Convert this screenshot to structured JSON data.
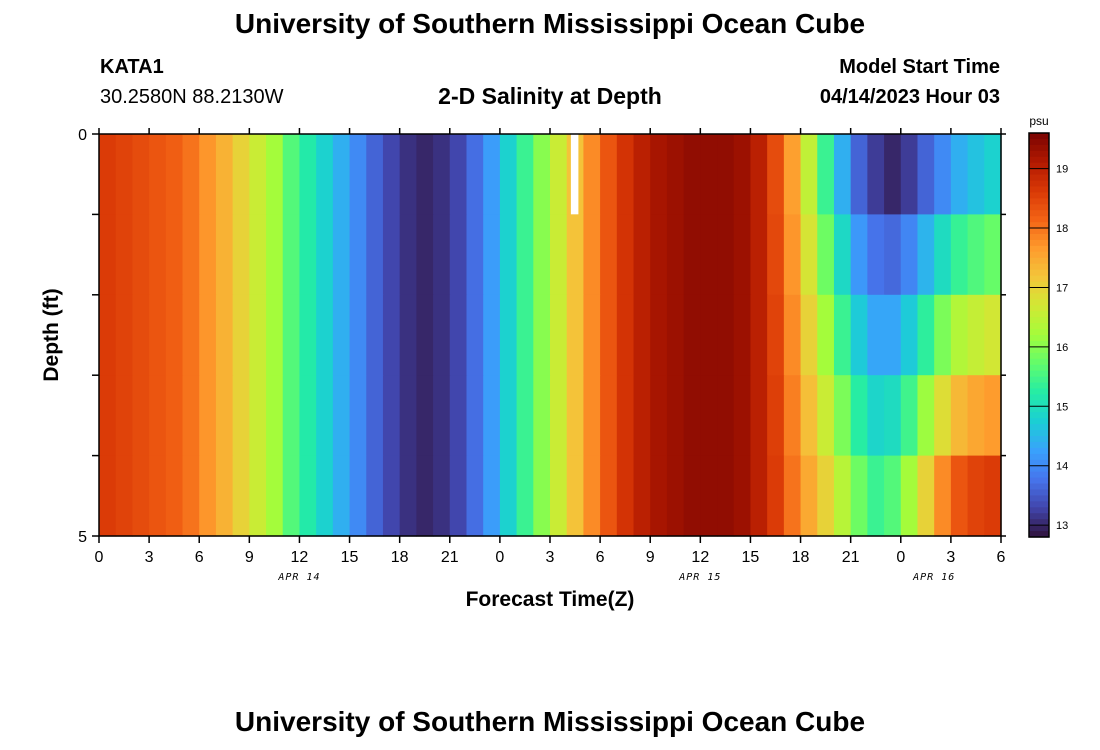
{
  "page": {
    "title": "University of Southern Mississippi Ocean Cube",
    "station": "KATA1",
    "coords": "30.2580N  88.2130W",
    "subtitle": "2-D Salinity at Depth",
    "model_start_label": "Model Start Time",
    "model_start_time": "04/14/2023 Hour 03",
    "footer_title": "University of Southern Mississippi Ocean Cube"
  },
  "chart_data": {
    "type": "heatmap",
    "title": "2-D Salinity at Depth",
    "xlabel": "Forecast Time(Z)",
    "ylabel": "Depth (ft)",
    "x_start_hour": 0,
    "x_end_hour": 54,
    "x_step_hours": 1,
    "x_tick_labels": [
      "0",
      "3",
      "6",
      "9",
      "12",
      "15",
      "18",
      "21",
      "0",
      "3",
      "6",
      "9",
      "12",
      "15",
      "18",
      "21",
      "0",
      "3",
      "6"
    ],
    "date_labels": [
      {
        "label": "APR 14",
        "hour": 12
      },
      {
        "label": "APR 15",
        "hour": 36
      },
      {
        "label": "APR 16",
        "hour": 50
      }
    ],
    "y_tick_labels": [
      "0",
      "5"
    ],
    "ylim": [
      0,
      5
    ],
    "depth_layers": 5,
    "colorbar": {
      "unit": "psu",
      "min": 12.8,
      "max": 19.6,
      "tick_labels": [
        "13",
        "14",
        "15",
        "16",
        "17",
        "18",
        "19"
      ]
    },
    "colormap": [
      "#30123b",
      "#4145ab",
      "#4675ed",
      "#39a2fc",
      "#1bcfd4",
      "#24eca6",
      "#61fc6c",
      "#a4fc3b",
      "#d1e834",
      "#f3c63a",
      "#fe9b2d",
      "#f36315",
      "#d93806",
      "#b11901",
      "#7a0402"
    ],
    "shallow_profile": [
      18.6,
      18.5,
      18.4,
      18.3,
      18.2,
      18.0,
      17.7,
      17.4,
      17.0,
      16.6,
      16.2,
      15.6,
      15.2,
      14.8,
      14.4,
      14.0,
      13.6,
      13.3,
      13.1,
      13.0,
      13.1,
      13.3,
      13.7,
      14.2,
      14.8,
      15.4,
      16.0,
      16.6,
      17.2,
      17.8,
      18.3,
      18.7,
      19.0,
      19.2,
      19.3,
      19.4,
      19.4,
      19.4,
      19.3,
      19.0,
      18.4,
      17.6,
      16.5,
      15.4,
      14.4,
      13.6,
      13.2,
      13.0,
      13.2,
      13.6,
      14.0,
      14.4,
      14.6,
      14.8,
      15.0
    ],
    "bottom_profile": [
      18.6,
      18.5,
      18.4,
      18.3,
      18.2,
      18.0,
      17.7,
      17.4,
      17.0,
      16.6,
      16.2,
      15.6,
      15.2,
      14.8,
      14.4,
      14.0,
      13.6,
      13.3,
      13.1,
      13.0,
      13.1,
      13.3,
      13.7,
      14.2,
      14.8,
      15.4,
      16.0,
      16.6,
      17.2,
      17.8,
      18.3,
      18.7,
      19.0,
      19.2,
      19.3,
      19.4,
      19.4,
      19.4,
      19.3,
      19.0,
      18.6,
      18.0,
      17.5,
      17.0,
      16.4,
      15.8,
      15.4,
      15.6,
      16.2,
      17.0,
      17.8,
      18.3,
      18.5,
      18.6,
      18.6
    ],
    "missing_cells": [
      {
        "hour": 28,
        "layer": 0
      }
    ]
  }
}
